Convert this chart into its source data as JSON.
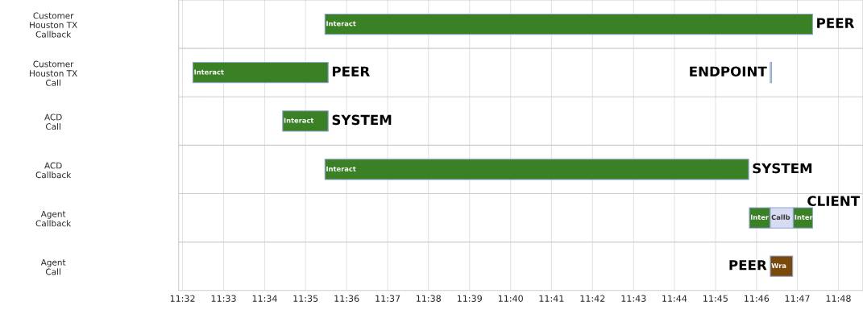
{
  "chart_data": {
    "type": "bar",
    "orientation": "horizontal",
    "grid": "x",
    "legend": false,
    "categories": [
      "Customer\nHouston TX\nCallback",
      "Customer\nHouston TX\nCall",
      "ACD\nCall",
      "ACD\nCallback",
      "Agent\nCallback",
      "Agent\nCall"
    ],
    "series": [
      {
        "color": "#3a8024",
        "base": [
          11.5912,
          11.5375,
          11.574,
          11.5912,
          11.7638,
          null
        ],
        "values": [
          0.1983,
          0.055,
          0.0185,
          0.1723,
          0.0085,
          null
        ],
        "value_labels": [
          "Interact",
          "Interact",
          "Interact",
          "Interact",
          "Inter",
          null
        ]
      },
      {
        "color": "#d8dcf2",
        "base": [
          null,
          11.7723,
          null,
          null,
          11.7723,
          null
        ],
        "values": [
          null,
          0.0005,
          null,
          null,
          0.0093,
          null
        ],
        "value_labels": [
          null,
          null,
          null,
          null,
          "Callb",
          null
        ]
      },
      {
        "color": "#3a8024",
        "base": [
          null,
          null,
          null,
          null,
          11.7817,
          null
        ],
        "values": [
          null,
          null,
          null,
          null,
          0.0078,
          null
        ],
        "value_labels": [
          null,
          null,
          null,
          null,
          "Inter",
          null
        ]
      },
      {
        "color": "#7a4a0c",
        "base": [
          null,
          null,
          null,
          null,
          null,
          11.7723
        ],
        "values": [
          null,
          null,
          null,
          null,
          null,
          0.0091
        ],
        "value_labels": [
          null,
          null,
          null,
          null,
          null,
          "Wra"
        ]
      }
    ],
    "xlim": [
      11.5317,
      11.81
    ],
    "xticks": [
      {
        "value": 11.5333,
        "label": "11:32"
      },
      {
        "value": 11.55,
        "label": "11:33"
      },
      {
        "value": 11.5667,
        "label": "11:34"
      },
      {
        "value": 11.5833,
        "label": "11:35"
      },
      {
        "value": 11.6,
        "label": "11:36"
      },
      {
        "value": 11.6167,
        "label": "11:37"
      },
      {
        "value": 11.6333,
        "label": "11:38"
      },
      {
        "value": 11.65,
        "label": "11:39"
      },
      {
        "value": 11.6667,
        "label": "11:40"
      },
      {
        "value": 11.6833,
        "label": "11:41"
      },
      {
        "value": 11.7,
        "label": "11:42"
      },
      {
        "value": 11.7167,
        "label": "11:43"
      },
      {
        "value": 11.7333,
        "label": "11:44"
      },
      {
        "value": 11.75,
        "label": "11:45"
      },
      {
        "value": 11.7667,
        "label": "11:46"
      },
      {
        "value": 11.7833,
        "label": "11:47"
      },
      {
        "value": 11.8,
        "label": "11:48"
      }
    ],
    "annotations": [
      {
        "text": "PEER",
        "x": 11.7895,
        "y": "Customer\nHouston TX\nCallback"
      },
      {
        "text": "PEER",
        "x": 11.5925,
        "y": "Customer\nHouston TX\nCall"
      },
      {
        "text": "ENDPOINT",
        "x": 11.7723,
        "y": "Customer\nHouston TX\nCall"
      },
      {
        "text": "SYSTEM",
        "x": 11.5925,
        "y": "ACD\nCall"
      },
      {
        "text": "SYSTEM",
        "x": 11.7635,
        "y": "ACD\nCallback"
      },
      {
        "text": "CLIENT",
        "x": 11.7895,
        "y": "Agent\nCallback"
      },
      {
        "text": "PEER",
        "x": 11.7723,
        "y": "Agent\nCall"
      }
    ]
  }
}
